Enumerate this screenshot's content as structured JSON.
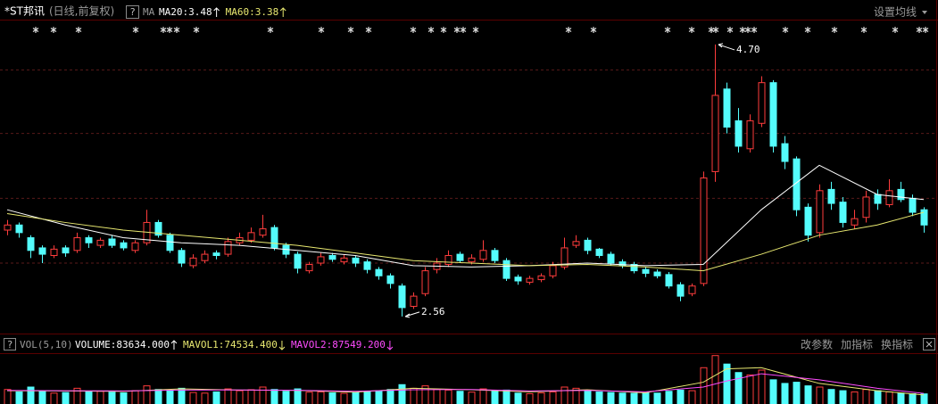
{
  "header": {
    "help": "?",
    "ma_label": "MA",
    "settings": "设置均线"
  },
  "chart_data": [
    {
      "type": "candlestick",
      "title": "*ST邦讯",
      "subtitle": "(日线,前复权)",
      "open": [
        3.24,
        3.28,
        3.18,
        3.1,
        3.04,
        3.1,
        3.08,
        3.18,
        3.12,
        3.17,
        3.14,
        3.08,
        3.14,
        3.3,
        3.2,
        3.08,
        2.96,
        3.0,
        3.06,
        3.05,
        3.14,
        3.16,
        3.2,
        3.26,
        3.12,
        3.05,
        2.92,
        2.98,
        3.04,
        2.99,
        3.02,
        2.99,
        2.93,
        2.88,
        2.8,
        2.64,
        2.74,
        2.93,
        2.97,
        3.05,
        2.99,
        3.01,
        3.08,
        3.0,
        2.87,
        2.83,
        2.85,
        2.88,
        2.95,
        3.12,
        3.16,
        3.09,
        3.05,
        2.99,
        2.97,
        2.93,
        2.91,
        2.89,
        2.81,
        2.74,
        2.82,
        3.7,
        4.35,
        4.1,
        3.88,
        4.08,
        4.4,
        3.92,
        3.8,
        3.42,
        3.22,
        3.56,
        3.46,
        3.28,
        3.34,
        3.52,
        3.44,
        3.56,
        3.49,
        3.4
      ],
      "high": [
        3.32,
        3.3,
        3.2,
        3.12,
        3.12,
        3.12,
        3.22,
        3.2,
        3.18,
        3.2,
        3.16,
        3.16,
        3.4,
        3.32,
        3.22,
        3.1,
        3.05,
        3.08,
        3.08,
        3.18,
        3.22,
        3.26,
        3.36,
        3.28,
        3.14,
        3.07,
        2.99,
        3.06,
        3.06,
        3.05,
        3.04,
        3.01,
        2.95,
        2.9,
        2.82,
        2.75,
        2.95,
        3.02,
        3.08,
        3.07,
        3.05,
        3.16,
        3.1,
        3.02,
        2.89,
        2.88,
        2.9,
        2.99,
        3.18,
        3.2,
        3.18,
        3.1,
        3.07,
        3.01,
        2.99,
        2.95,
        2.93,
        2.91,
        2.83,
        2.82,
        3.7,
        4.7,
        4.4,
        4.2,
        4.15,
        4.45,
        4.42,
        3.98,
        3.82,
        3.45,
        3.6,
        3.62,
        3.5,
        3.4,
        3.55,
        3.56,
        3.64,
        3.62,
        3.52,
        3.42
      ],
      "low": [
        3.2,
        3.18,
        3.02,
        2.98,
        3.02,
        3.03,
        3.06,
        3.1,
        3.1,
        3.1,
        3.08,
        3.06,
        3.12,
        3.18,
        3.06,
        2.95,
        2.94,
        2.98,
        3.01,
        3.03,
        3.12,
        3.14,
        3.18,
        3.08,
        3.02,
        2.9,
        2.9,
        2.96,
        2.99,
        2.97,
        2.95,
        2.9,
        2.85,
        2.78,
        2.56,
        2.62,
        2.72,
        2.9,
        2.95,
        2.98,
        2.97,
        2.99,
        2.98,
        2.84,
        2.81,
        2.81,
        2.83,
        2.86,
        2.93,
        3.1,
        3.05,
        3.02,
        2.96,
        2.94,
        2.9,
        2.87,
        2.86,
        2.78,
        2.68,
        2.72,
        2.8,
        3.62,
        4.0,
        3.85,
        3.85,
        4.05,
        3.85,
        3.72,
        3.35,
        3.15,
        3.18,
        3.4,
        3.26,
        3.25,
        3.3,
        3.4,
        3.42,
        3.46,
        3.35,
        3.22
      ],
      "close": [
        3.28,
        3.22,
        3.08,
        3.05,
        3.09,
        3.06,
        3.18,
        3.14,
        3.16,
        3.12,
        3.1,
        3.14,
        3.3,
        3.2,
        3.08,
        2.98,
        3.02,
        3.05,
        3.04,
        3.15,
        3.18,
        3.22,
        3.25,
        3.1,
        3.05,
        2.94,
        2.97,
        3.03,
        3.01,
        3.02,
        2.98,
        2.93,
        2.88,
        2.82,
        2.63,
        2.72,
        2.92,
        2.98,
        3.04,
        3.0,
        3.02,
        3.08,
        3.0,
        2.86,
        2.84,
        2.86,
        2.88,
        2.96,
        3.1,
        3.15,
        3.08,
        3.04,
        2.98,
        2.96,
        2.92,
        2.9,
        2.88,
        2.8,
        2.72,
        2.8,
        3.65,
        4.3,
        4.05,
        3.9,
        4.1,
        4.4,
        3.9,
        3.78,
        3.4,
        3.2,
        3.55,
        3.45,
        3.3,
        3.33,
        3.5,
        3.45,
        3.55,
        3.48,
        3.38,
        3.28
      ],
      "up_color": "#ff3c3c",
      "down_color": "#54fcfc",
      "ylim": [
        2.44,
        4.91
      ],
      "grid_levels": [
        4.5,
        4.0,
        3.49,
        2.98
      ],
      "high_label": "4.70",
      "low_label": "2.56",
      "lines": [
        {
          "label": "MA20:3.48",
          "color": "#ffffff",
          "arrow": "up",
          "x": [
            0,
            5,
            10,
            15,
            20,
            25,
            30,
            35,
            40,
            45,
            50,
            55,
            60,
            65,
            70,
            75,
            79
          ],
          "values": [
            3.4,
            3.28,
            3.18,
            3.14,
            3.12,
            3.08,
            3.04,
            2.96,
            2.95,
            2.96,
            2.98,
            2.96,
            2.97,
            3.4,
            3.75,
            3.52,
            3.48
          ]
        },
        {
          "label": "MA60:3.38",
          "color": "#e8e870",
          "arrow": "up",
          "x": [
            0,
            5,
            10,
            15,
            20,
            25,
            30,
            35,
            40,
            45,
            50,
            55,
            60,
            65,
            70,
            75,
            79
          ],
          "values": [
            3.37,
            3.3,
            3.24,
            3.2,
            3.16,
            3.12,
            3.06,
            3.0,
            2.98,
            2.96,
            2.97,
            2.95,
            2.92,
            3.05,
            3.2,
            3.28,
            3.38
          ]
        }
      ]
    },
    {
      "type": "volume",
      "title": "VOL(5,10)",
      "help": "?",
      "series": [
        {
          "label": "VOLUME:83634.000",
          "color": "#ffffff",
          "arrow": "up",
          "values": [
            120000,
            100000,
            140000,
            110000,
            90000,
            95000,
            130000,
            100000,
            105000,
            98000,
            92000,
            110000,
            150000,
            120000,
            115000,
            130000,
            95000,
            90000,
            100000,
            125000,
            110000,
            118000,
            140000,
            120000,
            105000,
            125000,
            98000,
            100000,
            92000,
            88000,
            95000,
            105000,
            110000,
            120000,
            160000,
            130000,
            150000,
            120000,
            115000,
            105000,
            98000,
            125000,
            110000,
            115000,
            90000,
            85000,
            92000,
            100000,
            140000,
            130000,
            110000,
            100000,
            95000,
            90000,
            88000,
            92000,
            90000,
            105000,
            115000,
            110000,
            300000,
            400000,
            330000,
            260000,
            240000,
            280000,
            200000,
            170000,
            180000,
            150000,
            140000,
            120000,
            110000,
            100000,
            120000,
            110000,
            100000,
            90000,
            85000,
            83634
          ]
        }
      ],
      "lines": [
        {
          "label": "MAVOL1:74534.400",
          "color": "#e8e870",
          "arrow": "down",
          "x": [
            0,
            5,
            10,
            15,
            20,
            25,
            30,
            35,
            40,
            45,
            50,
            55,
            60,
            62,
            65,
            70,
            75,
            79
          ],
          "values": [
            110000,
            108000,
            104000,
            125000,
            115000,
            112000,
            98000,
            130000,
            118000,
            100000,
            118000,
            92000,
            180000,
            290000,
            300000,
            170000,
            110000,
            74534.4
          ]
        },
        {
          "label": "MAVOL2:87549.200",
          "color": "#ff4cff",
          "arrow": "down",
          "x": [
            0,
            5,
            10,
            15,
            20,
            25,
            30,
            35,
            40,
            45,
            50,
            55,
            60,
            62,
            65,
            70,
            75,
            79
          ],
          "values": [
            112000,
            110000,
            108000,
            115000,
            116000,
            113000,
            105000,
            118000,
            120000,
            108000,
            112000,
            100000,
            140000,
            190000,
            250000,
            200000,
            130000,
            87549.2
          ]
        }
      ],
      "ylim": [
        0,
        420000
      ],
      "buttons": [
        "改参数",
        "加指标",
        "换指标"
      ]
    }
  ]
}
